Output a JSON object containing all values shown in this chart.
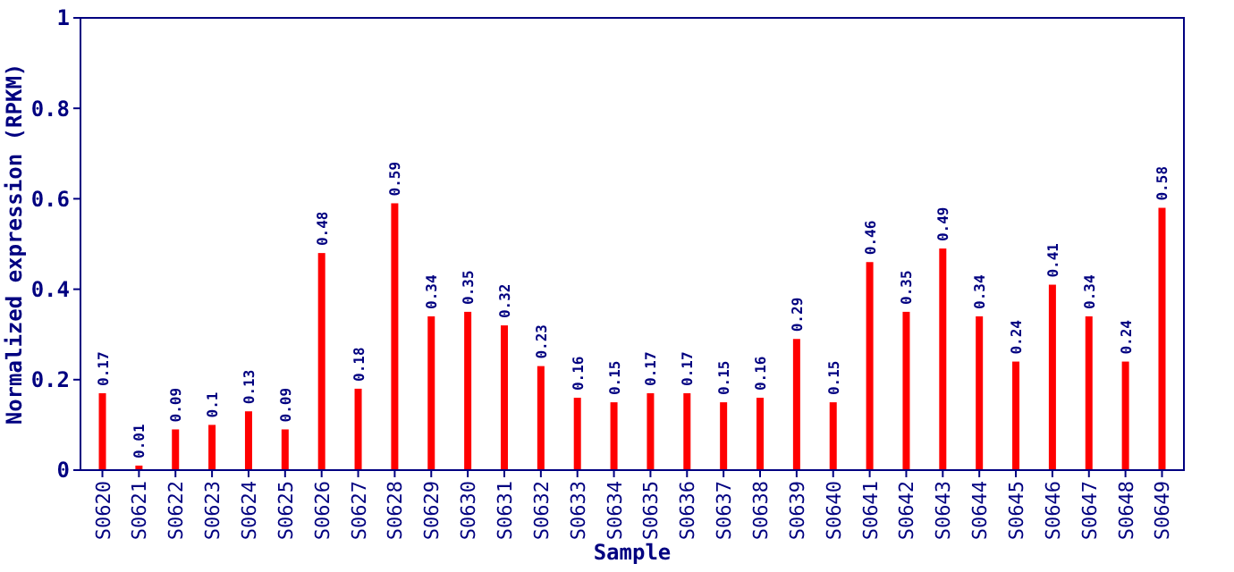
{
  "chart_data": {
    "type": "bar",
    "xlabel": "Sample",
    "ylabel": "Normalized expression (RPKM)",
    "categories": [
      "S0620",
      "S0621",
      "S0622",
      "S0623",
      "S0624",
      "S0625",
      "S0626",
      "S0627",
      "S0628",
      "S0629",
      "S0630",
      "S0631",
      "S0632",
      "S0633",
      "S0634",
      "S0635",
      "S0636",
      "S0637",
      "S0638",
      "S0639",
      "S0640",
      "S0641",
      "S0642",
      "S0643",
      "S0644",
      "S0645",
      "S0646",
      "S0647",
      "S0648",
      "S0649"
    ],
    "values": [
      0.17,
      0.01,
      0.09,
      0.1,
      0.13,
      0.09,
      0.48,
      0.18,
      0.59,
      0.34,
      0.35,
      0.32,
      0.23,
      0.16,
      0.15,
      0.17,
      0.17,
      0.15,
      0.16,
      0.29,
      0.15,
      0.46,
      0.35,
      0.49,
      0.34,
      0.24,
      0.41,
      0.34,
      0.24,
      0.58
    ],
    "color": "#ff0000",
    "ylim": [
      0,
      1
    ],
    "yticks": [
      0,
      0.2,
      0.4,
      0.6,
      0.8,
      1
    ],
    "data_labels": true,
    "grid": false
  }
}
